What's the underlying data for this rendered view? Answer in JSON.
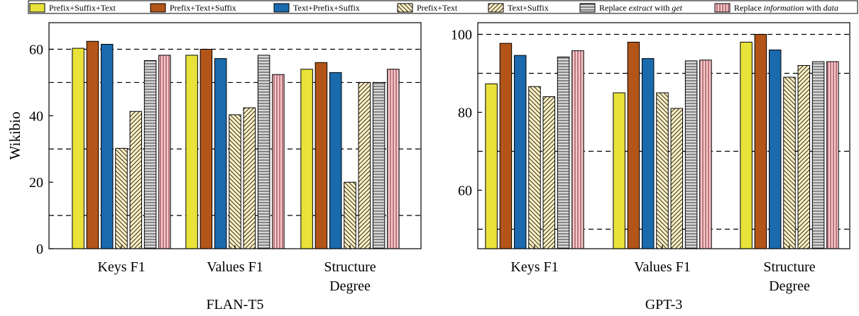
{
  "legend": {
    "entries": [
      {
        "parts": [
          {
            "t": "Prefix+Suffix+Text",
            "i": false
          }
        ]
      },
      {
        "parts": [
          {
            "t": "Prefix+Text+Suffix",
            "i": false
          }
        ]
      },
      {
        "parts": [
          {
            "t": "Text+Prefix+Suffix",
            "i": false
          }
        ]
      },
      {
        "parts": [
          {
            "t": "Prefix+Text",
            "i": false
          }
        ]
      },
      {
        "parts": [
          {
            "t": "Text+Suffix",
            "i": false
          }
        ]
      },
      {
        "parts": [
          {
            "t": "Replace ",
            "i": false
          },
          {
            "t": "extract",
            "i": true
          },
          {
            "t": " with ",
            "i": false
          },
          {
            "t": "get",
            "i": true
          }
        ]
      },
      {
        "parts": [
          {
            "t": "Replace ",
            "i": false
          },
          {
            "t": "information",
            "i": true
          },
          {
            "t": " with ",
            "i": false
          },
          {
            "t": "data",
            "i": true
          }
        ]
      }
    ]
  },
  "chart_data": [
    {
      "type": "bar",
      "title": "FLAN-T5",
      "ylabel": "Wikibio",
      "xlabel": "",
      "categories": [
        [
          "Keys F1"
        ],
        [
          "Values F1"
        ],
        [
          "Structure",
          "Degree"
        ]
      ],
      "ylim": [
        0,
        68
      ],
      "yticks": [
        0,
        20,
        40,
        60
      ],
      "grid_dashed": [
        10,
        30,
        50,
        60
      ],
      "series": [
        {
          "name": "Prefix+Suffix+Text",
          "values": [
            60.3,
            58.2,
            54.0
          ]
        },
        {
          "name": "Prefix+Text+Suffix",
          "values": [
            62.4,
            60.0,
            56.0
          ]
        },
        {
          "name": "Text+Prefix+Suffix",
          "values": [
            61.5,
            57.2,
            53.0
          ]
        },
        {
          "name": "Prefix+Text",
          "values": [
            30.2,
            40.3,
            20.0
          ]
        },
        {
          "name": "Text+Suffix",
          "values": [
            41.3,
            42.4,
            50.0
          ]
        },
        {
          "name": "Replace extract with get",
          "values": [
            56.6,
            58.2,
            50.0
          ]
        },
        {
          "name": "Replace information with data",
          "values": [
            58.2,
            52.4,
            54.0
          ]
        }
      ]
    },
    {
      "type": "bar",
      "title": "GPT-3",
      "ylabel": "",
      "xlabel": "",
      "categories": [
        [
          "Keys F1"
        ],
        [
          "Values F1"
        ],
        [
          "Structure",
          "Degree"
        ]
      ],
      "ylim": [
        45,
        103
      ],
      "yticks": [
        60,
        80,
        100
      ],
      "grid_dashed": [
        50,
        70,
        90,
        100
      ],
      "series": [
        {
          "name": "Prefix+Suffix+Text",
          "values": [
            87.3,
            85.0,
            98.0
          ]
        },
        {
          "name": "Prefix+Text+Suffix",
          "values": [
            97.7,
            98.0,
            100.0
          ]
        },
        {
          "name": "Text+Prefix+Suffix",
          "values": [
            94.6,
            93.8,
            96.0
          ]
        },
        {
          "name": "Prefix+Text",
          "values": [
            86.6,
            85.0,
            89.0
          ]
        },
        {
          "name": "Text+Suffix",
          "values": [
            84.0,
            81.0,
            92.0
          ]
        },
        {
          "name": "Replace extract with get",
          "values": [
            94.2,
            93.2,
            93.0
          ]
        },
        {
          "name": "Replace information with data",
          "values": [
            95.8,
            93.4,
            93.0
          ]
        }
      ]
    }
  ],
  "styles": {
    "series": [
      {
        "fill": "#e8e23a",
        "pattern": "none"
      },
      {
        "fill": "#b35518",
        "pattern": "none"
      },
      {
        "fill": "#1a6aad",
        "pattern": "none"
      },
      {
        "fill": "#fbf1cf",
        "pattern": "backslash",
        "stroke_pattern": "#3a3000"
      },
      {
        "fill": "#fbf1cf",
        "pattern": "slash",
        "stroke_pattern": "#3a3000"
      },
      {
        "fill": "#d8d8d8",
        "pattern": "hlines",
        "stroke_pattern": "#333333"
      },
      {
        "fill": "#f8c8cc",
        "pattern": "vlines",
        "stroke_pattern": "#7a2a30"
      }
    ]
  }
}
